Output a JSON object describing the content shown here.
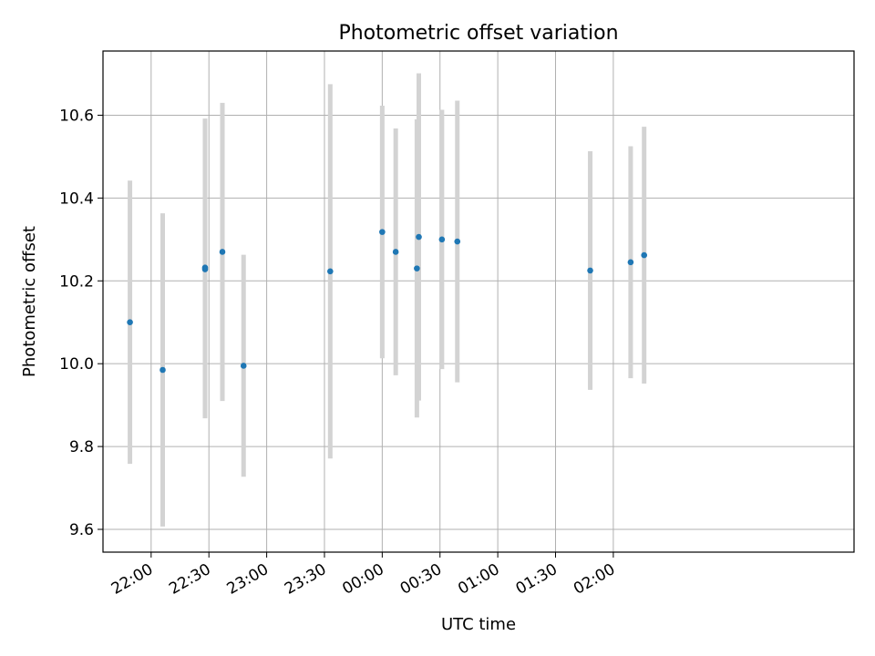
{
  "chart_data": {
    "type": "scatter",
    "title": "Photometric offset variation",
    "xlabel": "UTC time",
    "ylabel": "Photometric offset",
    "x_unit": "UTC time (HH:MM)",
    "xlim": [
      "21:35",
      "04:05"
    ],
    "ylim": [
      9.545,
      10.755
    ],
    "grid": true,
    "x_ticks": [
      {
        "value": "22:00",
        "label": "22:00"
      },
      {
        "value": "22:30",
        "label": "22:30"
      },
      {
        "value": "23:00",
        "label": "23:00"
      },
      {
        "value": "23:30",
        "label": "23:30"
      },
      {
        "value": "00:00",
        "label": "00:00"
      },
      {
        "value": "00:30",
        "label": "00:30"
      },
      {
        "value": "01:00",
        "label": "01:00"
      },
      {
        "value": "01:30",
        "label": "01:30"
      },
      {
        "value": "02:00",
        "label": "02:00"
      }
    ],
    "y_ticks": [
      9.6,
      9.8,
      10.0,
      10.2,
      10.4,
      10.6
    ],
    "y_tick_labels": [
      "9.6",
      "9.8",
      "10.0",
      "10.2",
      "10.4",
      "10.6"
    ],
    "marker_color": "#1f77b4",
    "errorbar_color": "#d3d3d3",
    "points": [
      {
        "x": "21:49",
        "y": 10.1,
        "err": 0.342
      },
      {
        "x": "22:06",
        "y": 9.985,
        "err": 0.378
      },
      {
        "x": "22:28",
        "y": 10.232,
        "err": 0.36
      },
      {
        "x": "22:28",
        "y": 10.228,
        "err": 0.36
      },
      {
        "x": "22:37",
        "y": 10.27,
        "err": 0.36
      },
      {
        "x": "22:48",
        "y": 9.995,
        "err": 0.268
      },
      {
        "x": "23:33",
        "y": 10.223,
        "err": 0.452
      },
      {
        "x": "00:00",
        "y": 10.318,
        "err": 0.305
      },
      {
        "x": "00:07",
        "y": 10.27,
        "err": 0.298
      },
      {
        "x": "00:18",
        "y": 10.23,
        "err": 0.36
      },
      {
        "x": "00:19",
        "y": 10.306,
        "err": 0.395
      },
      {
        "x": "00:31",
        "y": 10.3,
        "err": 0.313
      },
      {
        "x": "00:39",
        "y": 10.295,
        "err": 0.34
      },
      {
        "x": "01:48",
        "y": 10.225,
        "err": 0.288
      },
      {
        "x": "02:09",
        "y": 10.245,
        "err": 0.28
      },
      {
        "x": "02:16",
        "y": 10.262,
        "err": 0.31
      }
    ]
  }
}
